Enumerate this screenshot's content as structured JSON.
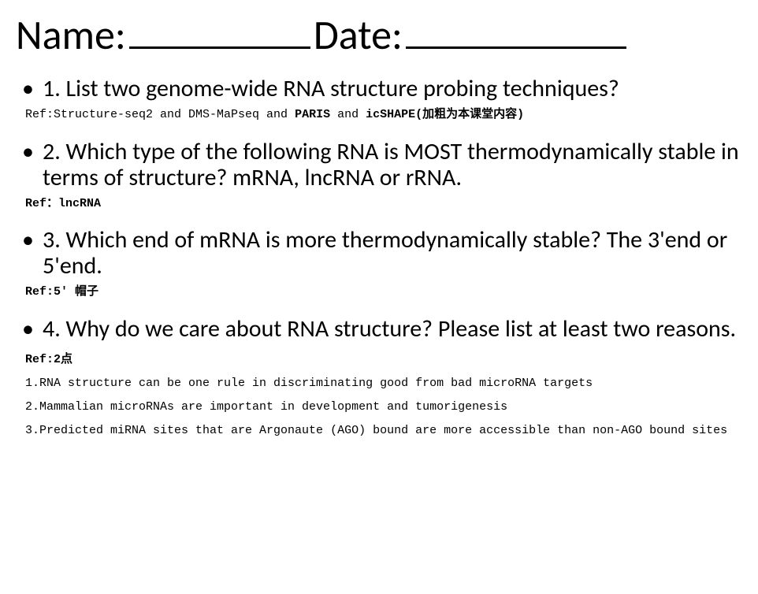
{
  "header": {
    "name_label": "Name:",
    "date_label": "Date:"
  },
  "questions": {
    "q1": {
      "text": "1. List two genome-wide RNA structure probing techniques?",
      "ref_prefix": "Ref:Structure-seq2 and DMS-MaPseq and ",
      "ref_bold1": "PARIS",
      "ref_mid": " and ",
      "ref_bold2": "icSHAPE(加粗为本课堂内容)"
    },
    "q2": {
      "text": "2. Which type of the following RNA is MOST thermodynamically stable in terms of structure? mRNA, lncRNA or rRNA.",
      "ref": "Ref：lncRNA"
    },
    "q3": {
      "text": "3. Which end of mRNA is more thermodynamically stable? The 3'end or 5'end.",
      "ref": "Ref:5' 帽子"
    },
    "q4": {
      "text": "4. Why do we care about RNA structure? Please list at least two reasons.",
      "ref_head": "Ref:2点",
      "items": [
        "1.RNA structure can be one rule in discriminating good from bad microRNA targets",
        "2.Mammalian microRNAs are important in development and tumorigenesis",
        "3.Predicted miRNA sites that are  Argonaute (AGO) bound are more accessible than non-AGO bound sites"
      ]
    }
  },
  "style": {
    "background_color": "#ffffff",
    "text_color": "#000000",
    "header_fontsize": 52,
    "question_fontsize": 30,
    "ref_fontsize": 15,
    "ref_font": "SimSun/monospace",
    "body_font": "Calibri/Arial"
  }
}
